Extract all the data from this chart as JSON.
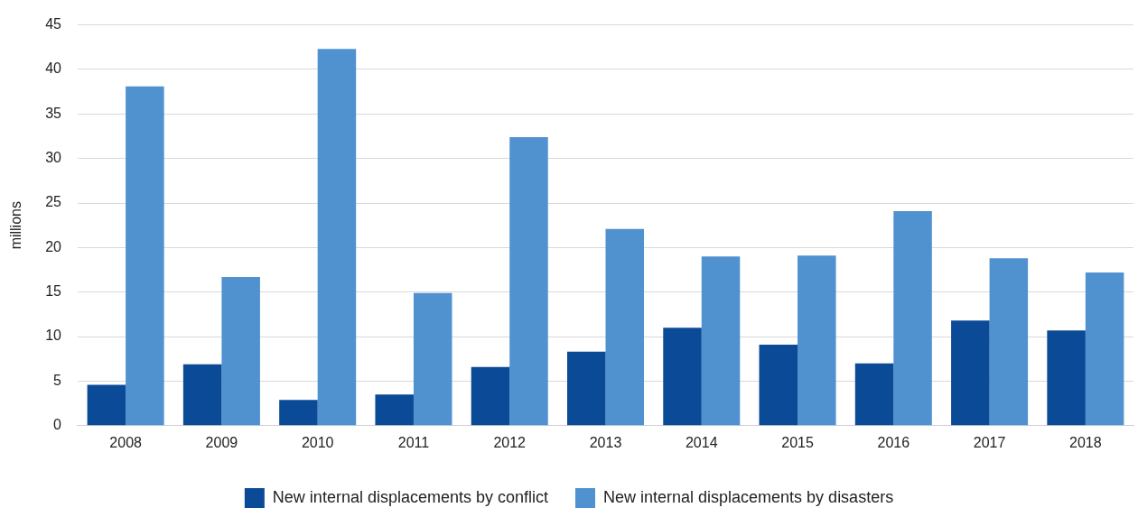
{
  "chart_data": {
    "type": "bar",
    "ylabel": "millions",
    "categories": [
      "2008",
      "2009",
      "2010",
      "2011",
      "2012",
      "2013",
      "2014",
      "2015",
      "2016",
      "2017",
      "2018"
    ],
    "series": [
      {
        "name": "New internal displacements by conflict",
        "color": "#0b4a96",
        "values": [
          4.6,
          6.9,
          2.9,
          3.5,
          6.6,
          8.3,
          11.0,
          9.1,
          7.0,
          11.8,
          10.7
        ]
      },
      {
        "name": "New internal displacements by disasters",
        "color": "#5091cf",
        "values": [
          38.1,
          16.7,
          42.3,
          14.9,
          32.4,
          22.1,
          19.0,
          19.1,
          24.1,
          18.8,
          17.2
        ]
      }
    ],
    "ylim": [
      0,
      45
    ],
    "yticks": [
      0,
      5,
      10,
      15,
      20,
      25,
      30,
      35,
      40,
      45
    ],
    "grid": "y",
    "legend": "bottom"
  }
}
